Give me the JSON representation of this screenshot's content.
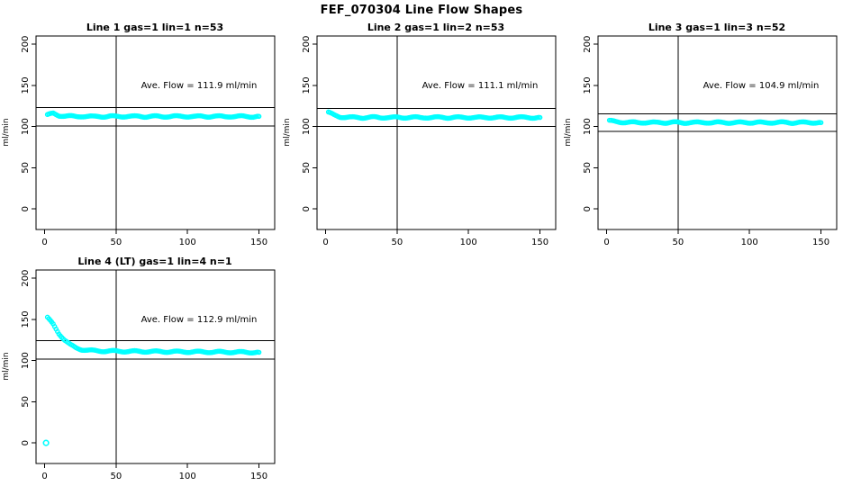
{
  "page": {
    "main_title": "FEF_070304  Line Flow Shapes"
  },
  "colors": {
    "data_point": "#00ffff",
    "axis": "#000000",
    "background": "#ffffff"
  },
  "chart_data": [
    {
      "type": "scatter",
      "title": "Line 1 gas=1 lin=1 n=53",
      "annotation": "Ave. Flow =  111.9  ml/min",
      "ave_flow_ml_min": 111.9,
      "xlabel": "",
      "ylabel": "ml/min",
      "x_ticks": [
        0,
        50,
        100,
        150
      ],
      "y_ticks": [
        0,
        50,
        100,
        150,
        200
      ],
      "xlim": [
        -6,
        161
      ],
      "ylim": [
        -25,
        210
      ],
      "vline_x": 50,
      "hlines": [
        100.7,
        123.1
      ],
      "marker": "open-circle-cyan",
      "x": [
        2,
        6,
        10,
        14,
        18,
        22,
        26,
        30,
        34,
        38,
        42,
        46,
        50,
        54,
        58,
        62,
        66,
        70,
        74,
        78,
        82,
        86,
        90,
        94,
        98,
        102,
        106,
        110,
        114,
        118,
        122,
        126,
        130,
        134,
        138,
        142,
        146,
        150
      ],
      "y": [
        114.0,
        116.0,
        113.5,
        112.8,
        112.5,
        112.2,
        112.6,
        112.3,
        112.0,
        112.4,
        112.2,
        112.5,
        112.1,
        112.3,
        112.6,
        112.2,
        112.4,
        112.1,
        112.5,
        112.3,
        112.0,
        112.4,
        112.6,
        112.2,
        112.3,
        112.5,
        112.1,
        112.4,
        112.2,
        112.6,
        112.3,
        112.1,
        112.5,
        112.2,
        112.4,
        112.3,
        112.1,
        112.4
      ],
      "outliers": []
    },
    {
      "type": "scatter",
      "title": "Line 2 gas=1 lin=2 n=53",
      "annotation": "Ave. Flow =  111.1  ml/min",
      "ave_flow_ml_min": 111.1,
      "xlabel": "",
      "ylabel": "ml/min",
      "x_ticks": [
        0,
        50,
        100,
        150
      ],
      "y_ticks": [
        0,
        50,
        100,
        150,
        200
      ],
      "xlim": [
        -6,
        161
      ],
      "ylim": [
        -25,
        210
      ],
      "vline_x": 50,
      "hlines": [
        100.0,
        122.2
      ],
      "marker": "open-circle-cyan",
      "x": [
        2,
        6,
        10,
        14,
        18,
        22,
        26,
        30,
        34,
        38,
        42,
        46,
        50,
        54,
        58,
        62,
        66,
        70,
        74,
        78,
        82,
        86,
        90,
        94,
        98,
        102,
        106,
        110,
        114,
        118,
        122,
        126,
        130,
        134,
        138,
        142,
        146,
        150
      ],
      "y": [
        117.0,
        114.0,
        112.0,
        111.3,
        111.0,
        111.2,
        110.9,
        111.1,
        111.3,
        111.0,
        111.2,
        110.9,
        111.1,
        111.0,
        111.2,
        111.1,
        110.9,
        111.2,
        111.0,
        111.1,
        111.3,
        110.9,
        111.1,
        111.0,
        111.2,
        111.1,
        110.9,
        111.0,
        111.2,
        111.1,
        111.0,
        110.9,
        111.1,
        111.2,
        111.0,
        111.1,
        110.9,
        111.0
      ],
      "outliers": []
    },
    {
      "type": "scatter",
      "title": "Line 3 gas=1 lin=3 n=52",
      "annotation": "Ave. Flow =  104.9  ml/min",
      "ave_flow_ml_min": 104.9,
      "xlabel": "",
      "ylabel": "ml/min",
      "x_ticks": [
        0,
        50,
        100,
        150
      ],
      "y_ticks": [
        0,
        50,
        100,
        150,
        200
      ],
      "xlim": [
        -6,
        161
      ],
      "ylim": [
        -25,
        210
      ],
      "vline_x": 50,
      "hlines": [
        94.4,
        115.4
      ],
      "marker": "open-circle-cyan",
      "x": [
        2,
        6,
        10,
        14,
        18,
        22,
        26,
        30,
        34,
        38,
        42,
        46,
        50,
        54,
        58,
        62,
        66,
        70,
        74,
        78,
        82,
        86,
        90,
        94,
        98,
        102,
        106,
        110,
        114,
        118,
        122,
        126,
        130,
        134,
        138,
        142,
        146,
        150
      ],
      "y": [
        107.0,
        106.0,
        105.5,
        105.2,
        105.0,
        104.8,
        105.1,
        104.9,
        104.7,
        105.0,
        104.8,
        105.1,
        104.9,
        104.6,
        105.0,
        104.8,
        104.9,
        105.1,
        104.7,
        104.9,
        105.0,
        104.8,
        104.6,
        104.9,
        105.1,
        104.8,
        104.9,
        104.7,
        105.0,
        104.8,
        104.9,
        105.1,
        104.7,
        104.9,
        104.8,
        105.0,
        104.9,
        104.8
      ],
      "outliers": []
    },
    {
      "type": "scatter",
      "title": "Line 4 (LT) gas=1 lin=4 n=1",
      "annotation": "Ave. Flow =  112.9  ml/min",
      "ave_flow_ml_min": 112.9,
      "xlabel": "",
      "ylabel": "ml/min",
      "x_ticks": [
        0,
        50,
        100,
        150
      ],
      "y_ticks": [
        0,
        50,
        100,
        150,
        200
      ],
      "xlim": [
        -6,
        161
      ],
      "ylim": [
        -25,
        210
      ],
      "vline_x": 50,
      "hlines": [
        101.6,
        124.2
      ],
      "marker": "open-circle-cyan",
      "x": [
        2,
        6,
        10,
        14,
        18,
        22,
        26,
        30,
        34,
        38,
        42,
        46,
        50,
        54,
        58,
        62,
        66,
        70,
        74,
        78,
        82,
        86,
        90,
        94,
        98,
        102,
        106,
        110,
        114,
        118,
        122,
        126,
        130,
        134,
        138,
        142,
        146,
        150
      ],
      "y": [
        152.0,
        144.0,
        133.0,
        125.0,
        119.0,
        115.5,
        113.5,
        112.5,
        112.0,
        111.8,
        111.5,
        111.5,
        111.4,
        111.3,
        111.2,
        111.2,
        111.1,
        111.0,
        111.0,
        110.9,
        110.9,
        110.8,
        110.8,
        110.7,
        110.7,
        110.6,
        110.6,
        110.5,
        110.5,
        110.4,
        110.4,
        110.3,
        110.3,
        110.2,
        110.2,
        110.1,
        110.1,
        110.0
      ],
      "outliers": [
        [
          1,
          0
        ]
      ]
    }
  ]
}
